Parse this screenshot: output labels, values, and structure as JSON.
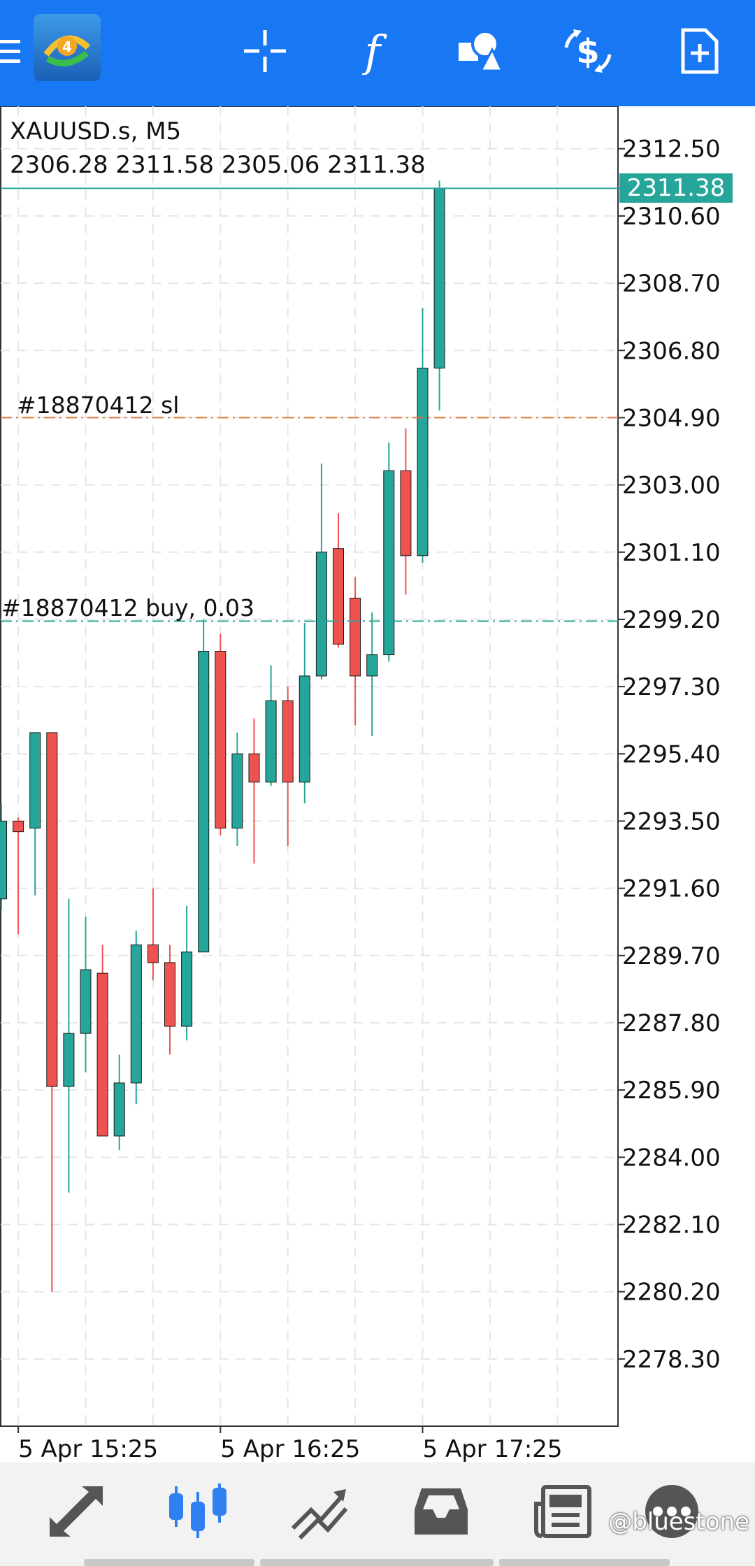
{
  "toolbar": {
    "icons": [
      "menu-icon",
      "metatrader-logo",
      "crosshair-icon",
      "indicators-icon",
      "objects-icon",
      "trade-icon",
      "new-order-icon"
    ],
    "color": "#1877f2"
  },
  "chart": {
    "symbol_label": "XAUUSD.s, M5",
    "ohlc_label": "2306.28 2311.58 2305.06 2311.38",
    "current_price_label": "2311.38",
    "sl_label": "#18870412 sl",
    "buy_label": "#18870412 buy, 0.03",
    "up_color": "#26a69a",
    "down_color": "#ef5350",
    "sl_line_color": "#e0783a"
  },
  "chart_data": {
    "type": "candlestick",
    "y_axis_labels": [
      "2312.50",
      "2310.60",
      "2308.70",
      "2306.80",
      "2304.90",
      "2303.00",
      "2301.10",
      "2299.20",
      "2297.30",
      "2295.40",
      "2293.50",
      "2291.60",
      "2289.70",
      "2287.80",
      "2285.90",
      "2284.00",
      "2282.10",
      "2280.20",
      "2278.30"
    ],
    "x_axis_labels": [
      "5 Apr 15:25",
      "5 Apr 16:25",
      "5 Apr 17:25"
    ],
    "ylim": [
      2276.4,
      2313.7
    ],
    "current_price": 2311.38,
    "sl_price": 2304.9,
    "buy_price": 2299.15,
    "candles": [
      {
        "o": 2291.3,
        "h": 2294.0,
        "l": 2291.0,
        "c": 2293.5
      },
      {
        "o": 2293.5,
        "h": 2293.6,
        "l": 2290.3,
        "c": 2293.2
      },
      {
        "o": 2293.3,
        "h": 2296.0,
        "l": 2291.4,
        "c": 2296.0
      },
      {
        "o": 2296.0,
        "h": 2296.0,
        "l": 2280.2,
        "c": 2286.0
      },
      {
        "o": 2286.0,
        "h": 2291.3,
        "l": 2283.0,
        "c": 2287.5
      },
      {
        "o": 2287.5,
        "h": 2290.8,
        "l": 2286.4,
        "c": 2289.3
      },
      {
        "o": 2289.2,
        "h": 2290.0,
        "l": 2284.6,
        "c": 2284.6
      },
      {
        "o": 2284.6,
        "h": 2286.9,
        "l": 2284.2,
        "c": 2286.1
      },
      {
        "o": 2286.1,
        "h": 2290.4,
        "l": 2285.5,
        "c": 2290.0
      },
      {
        "o": 2290.0,
        "h": 2291.6,
        "l": 2289.0,
        "c": 2289.5
      },
      {
        "o": 2289.5,
        "h": 2290.0,
        "l": 2286.9,
        "c": 2287.7
      },
      {
        "o": 2287.7,
        "h": 2291.1,
        "l": 2287.3,
        "c": 2289.8
      },
      {
        "o": 2289.8,
        "h": 2299.2,
        "l": 2289.8,
        "c": 2298.3
      },
      {
        "o": 2298.3,
        "h": 2298.8,
        "l": 2293.1,
        "c": 2293.3
      },
      {
        "o": 2293.3,
        "h": 2296.0,
        "l": 2292.8,
        "c": 2295.4
      },
      {
        "o": 2295.4,
        "h": 2296.4,
        "l": 2292.3,
        "c": 2294.6
      },
      {
        "o": 2294.6,
        "h": 2297.9,
        "l": 2294.5,
        "c": 2296.9
      },
      {
        "o": 2296.9,
        "h": 2297.3,
        "l": 2292.8,
        "c": 2294.6
      },
      {
        "o": 2294.6,
        "h": 2299.1,
        "l": 2294.0,
        "c": 2297.6
      },
      {
        "o": 2297.6,
        "h": 2303.6,
        "l": 2297.5,
        "c": 2301.1
      },
      {
        "o": 2301.2,
        "h": 2302.2,
        "l": 2298.4,
        "c": 2298.5
      },
      {
        "o": 2299.8,
        "h": 2300.4,
        "l": 2296.2,
        "c": 2297.6
      },
      {
        "o": 2297.6,
        "h": 2299.4,
        "l": 2295.9,
        "c": 2298.2
      },
      {
        "o": 2298.2,
        "h": 2304.2,
        "l": 2298.0,
        "c": 2303.4
      },
      {
        "o": 2303.4,
        "h": 2304.6,
        "l": 2299.9,
        "c": 2301.0
      },
      {
        "o": 2301.0,
        "h": 2308.0,
        "l": 2300.8,
        "c": 2306.3
      },
      {
        "o": 2306.3,
        "h": 2311.6,
        "l": 2305.1,
        "c": 2311.38
      }
    ]
  },
  "bottom_nav": {
    "items": [
      {
        "icon": "quotes-icon",
        "active": false
      },
      {
        "icon": "chart-icon",
        "active": true
      },
      {
        "icon": "trade-icon",
        "active": false
      },
      {
        "icon": "history-icon",
        "active": false
      },
      {
        "icon": "news-icon",
        "active": false
      },
      {
        "icon": "more-icon",
        "active": false
      }
    ],
    "active_color": "#2f80f0",
    "inactive_color": "#555555"
  },
  "watermark": "@bluestone"
}
